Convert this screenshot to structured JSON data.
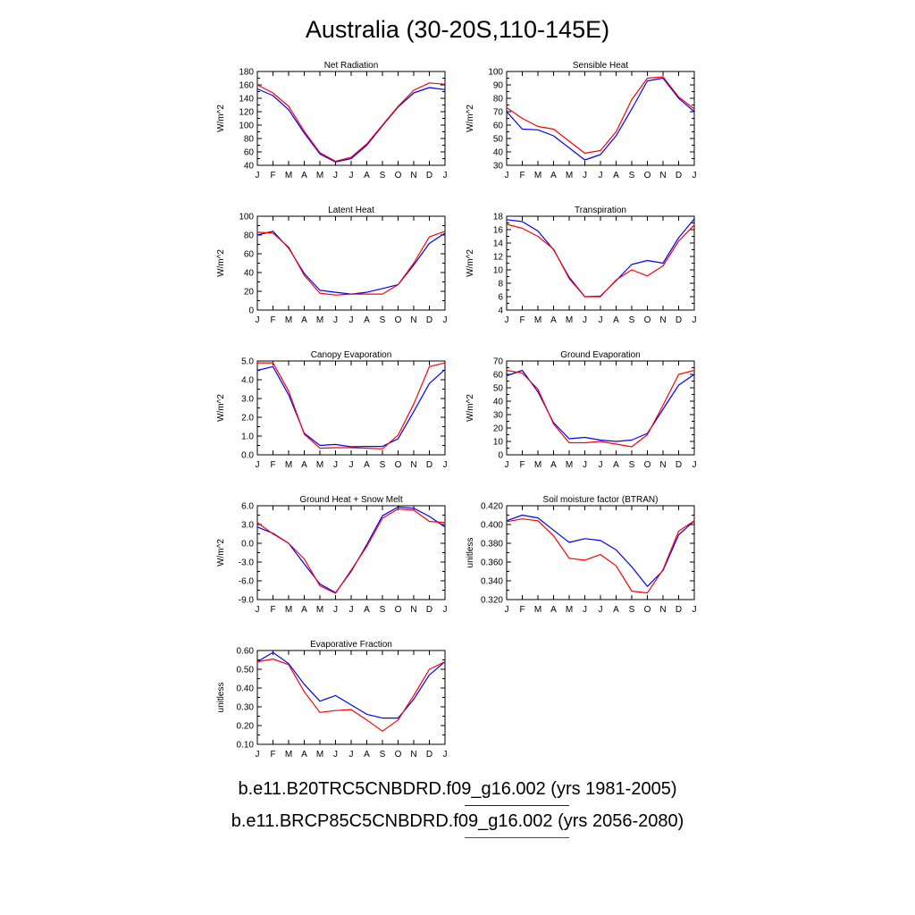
{
  "title": "Australia (30-20S,110-145E)",
  "months": [
    "J",
    "F",
    "M",
    "A",
    "M",
    "J",
    "J",
    "A",
    "S",
    "O",
    "N",
    "D",
    "J"
  ],
  "colors": {
    "run1": "#0000ff",
    "run2": "#ff0000"
  },
  "legend": [
    {
      "label": "b.e11.B20TRC5CNBDRD.f09_g16.002 (yrs 1981-2005)",
      "color": "#0000ff"
    },
    {
      "label": "b.e11.BRCP85C5CNBDRD.f09_g16.002 (yrs 2056-2080)",
      "color": "#ff0000"
    }
  ],
  "chart_data": [
    {
      "type": "line",
      "title": "Net Radiation",
      "ylabel": "W/m^2",
      "ylim": [
        40,
        180
      ],
      "yticks": [
        "40",
        "60",
        "80",
        "100",
        "120",
        "140",
        "160",
        "180"
      ],
      "series": [
        {
          "values": [
            154,
            144,
            123,
            88,
            57,
            45,
            50,
            70,
            99,
            127,
            148,
            156,
            153
          ]
        },
        {
          "values": [
            160,
            148,
            128,
            91,
            59,
            46,
            52,
            72,
            100,
            128,
            152,
            163,
            161
          ]
        }
      ]
    },
    {
      "type": "line",
      "title": "Sensible Heat",
      "ylabel": "W/m^2",
      "ylim": [
        30,
        100
      ],
      "yticks": [
        "30",
        "40",
        "50",
        "60",
        "70",
        "80",
        "90",
        "100"
      ],
      "series": [
        {
          "values": [
            70,
            57,
            56.5,
            52,
            43,
            34,
            38,
            52,
            72,
            93,
            95,
            80,
            70
          ]
        },
        {
          "values": [
            73,
            65,
            59,
            57,
            48,
            39,
            41,
            55,
            79,
            95,
            96,
            81,
            72
          ]
        }
      ]
    },
    {
      "type": "line",
      "title": "Latent Heat",
      "ylabel": "W/m^2",
      "ylim": [
        0,
        100
      ],
      "yticks": [
        "0",
        "20",
        "40",
        "60",
        "80",
        "100"
      ],
      "series": [
        {
          "values": [
            80,
            84,
            66,
            39,
            21,
            19,
            17,
            19,
            23,
            27,
            48,
            71,
            82
          ]
        },
        {
          "values": [
            83,
            82,
            67,
            37,
            18,
            16,
            17,
            17,
            17,
            27,
            50,
            78,
            84
          ]
        }
      ]
    },
    {
      "type": "line",
      "title": "Transpiration",
      "ylabel": "W/m^2",
      "ylim": [
        4,
        18
      ],
      "yticks": [
        "4",
        "6",
        "8",
        "10",
        "12",
        "14",
        "16",
        "18"
      ],
      "series": [
        {
          "values": [
            17.5,
            17.2,
            15.8,
            13.0,
            8.9,
            6.0,
            6.1,
            8.4,
            10.8,
            11.4,
            11.0,
            14.8,
            17.6
          ]
        },
        {
          "values": [
            16.8,
            16.2,
            15.0,
            13.1,
            8.7,
            6.0,
            6.0,
            8.5,
            10.0,
            9.1,
            10.6,
            14.3,
            16.7
          ]
        }
      ]
    },
    {
      "type": "line",
      "title": "Canopy Evaporation",
      "ylabel": "W/m^2",
      "ylim": [
        0,
        5
      ],
      "yticks": [
        "0.0",
        "1.0",
        "2.0",
        "3.0",
        "4.0",
        "5.0"
      ],
      "series": [
        {
          "values": [
            4.5,
            4.7,
            3.2,
            1.15,
            0.5,
            0.55,
            0.43,
            0.45,
            0.45,
            0.85,
            2.3,
            3.8,
            4.55
          ]
        },
        {
          "values": [
            4.9,
            4.9,
            3.4,
            1.1,
            0.35,
            0.38,
            0.38,
            0.35,
            0.32,
            1.05,
            2.7,
            4.7,
            4.9
          ]
        }
      ]
    },
    {
      "type": "line",
      "title": "Ground Evaporation",
      "ylabel": "W/m^2",
      "ylim": [
        0,
        70
      ],
      "yticks": [
        "0",
        "10",
        "20",
        "30",
        "40",
        "50",
        "60",
        "70"
      ],
      "series": [
        {
          "values": [
            59,
            63,
            47,
            24,
            12,
            13,
            11,
            10,
            11,
            16,
            34,
            52,
            60
          ]
        },
        {
          "values": [
            63,
            61,
            49,
            23,
            9,
            9,
            10,
            8,
            6,
            15,
            37,
            60,
            63
          ]
        }
      ]
    },
    {
      "type": "line",
      "title": "Ground Heat + Snow Melt",
      "ylabel": "W/m^2",
      "ylim": [
        -9,
        6
      ],
      "yticks": [
        "-9.0",
        "-6.0",
        "-3.0",
        "0.0",
        "3.0",
        "6.0"
      ],
      "series": [
        {
          "values": [
            2.6,
            1.6,
            0.0,
            -3.3,
            -6.5,
            -7.9,
            -4.5,
            -0.2,
            4.4,
            5.8,
            5.6,
            4.3,
            2.6
          ]
        },
        {
          "values": [
            3.3,
            1.5,
            0.0,
            -2.5,
            -6.8,
            -8.0,
            -4.3,
            -0.5,
            4.0,
            5.5,
            5.3,
            3.5,
            3.3
          ]
        }
      ]
    },
    {
      "type": "line",
      "title": "Soil moisture factor (BTRAN)",
      "ylabel": "unitless",
      "ylim": [
        0.32,
        0.42
      ],
      "yticks": [
        "0.320",
        "0.340",
        "0.360",
        "0.380",
        "0.400",
        "0.420"
      ],
      "series": [
        {
          "values": [
            0.404,
            0.41,
            0.407,
            0.394,
            0.381,
            0.385,
            0.383,
            0.373,
            0.355,
            0.334,
            0.351,
            0.389,
            0.404
          ]
        },
        {
          "values": [
            0.403,
            0.406,
            0.404,
            0.388,
            0.364,
            0.362,
            0.368,
            0.356,
            0.329,
            0.327,
            0.352,
            0.393,
            0.404
          ]
        }
      ]
    },
    {
      "type": "line",
      "title": "Evaporative Fraction",
      "ylabel": "unitless",
      "ylim": [
        0.1,
        0.6
      ],
      "yticks": [
        "0.10",
        "0.20",
        "0.30",
        "0.40",
        "0.50",
        "0.60"
      ],
      "series": [
        {
          "values": [
            0.54,
            0.59,
            0.53,
            0.42,
            0.33,
            0.36,
            0.31,
            0.26,
            0.24,
            0.24,
            0.34,
            0.47,
            0.54
          ]
        },
        {
          "values": [
            0.54,
            0.555,
            0.525,
            0.38,
            0.27,
            0.28,
            0.285,
            0.23,
            0.17,
            0.23,
            0.36,
            0.5,
            0.54
          ]
        }
      ]
    }
  ]
}
